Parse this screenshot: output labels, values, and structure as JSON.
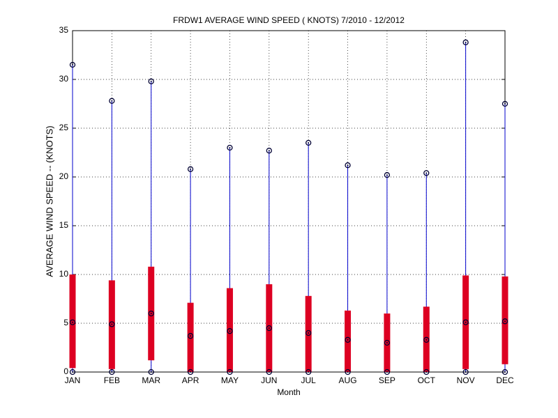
{
  "chart_data": {
    "type": "range",
    "title": "FRDW1  AVERAGE WIND SPEED ( KNOTS) 7/2010 - 12/2012",
    "xlabel": "Month",
    "ylabel": "AVERAGE WIND SPEED -- (KNOTS)",
    "categories": [
      "JAN",
      "FEB",
      "MAR",
      "APR",
      "MAY",
      "JUN",
      "JUL",
      "AUG",
      "SEP",
      "OCT",
      "NOV",
      "DEC"
    ],
    "min": [
      0,
      0,
      0,
      0,
      0,
      0,
      0,
      0,
      0,
      0,
      0,
      0
    ],
    "max": [
      31.5,
      27.8,
      29.8,
      20.8,
      23.0,
      22.7,
      23.5,
      21.2,
      20.2,
      20.4,
      33.8,
      27.5
    ],
    "mean": [
      5.1,
      4.9,
      6.0,
      3.7,
      4.2,
      4.5,
      4.0,
      3.3,
      3.0,
      3.3,
      5.1,
      5.2
    ],
    "bar_low": [
      0.4,
      0.3,
      1.2,
      0,
      0,
      0,
      0,
      0,
      0,
      0,
      0.3,
      0.8
    ],
    "bar_high": [
      10.0,
      9.4,
      10.8,
      7.1,
      8.6,
      9.0,
      7.8,
      6.3,
      6.0,
      6.7,
      9.9,
      9.8
    ],
    "line_color": "#0000cc",
    "bar_color": "#dd0022",
    "marker_color": "#000033",
    "ylim": [
      0,
      35
    ],
    "yticks": [
      0,
      5,
      10,
      15,
      20,
      25,
      30,
      35
    ],
    "grid": true
  }
}
